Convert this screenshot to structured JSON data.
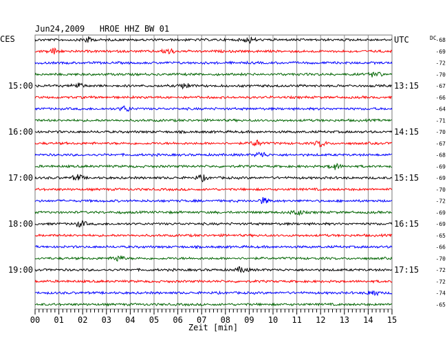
{
  "chart_data": {
    "type": "helicorder",
    "title": "Jun24,2009   HROE HHZ BW 01",
    "left_timezone": "CES",
    "right_timezone": "UTC",
    "dc_label": "DC",
    "xlabel": "Zeit [min]",
    "x_ticks": [
      "00",
      "01",
      "02",
      "03",
      "04",
      "05",
      "06",
      "07",
      "08",
      "09",
      "10",
      "11",
      "12",
      "13",
      "14",
      "15"
    ],
    "xlim": [
      0,
      15
    ],
    "grid": true,
    "left_hour_labels": [
      {
        "row": 4,
        "label": "15:00"
      },
      {
        "row": 8,
        "label": "16:00"
      },
      {
        "row": 12,
        "label": "17:00"
      },
      {
        "row": 16,
        "label": "18:00"
      },
      {
        "row": 20,
        "label": "19:00"
      }
    ],
    "right_hour_labels": [
      {
        "row": 0,
        "label": "UTC"
      },
      {
        "row": 4,
        "label": "13:15"
      },
      {
        "row": 8,
        "label": "14:15"
      },
      {
        "row": 12,
        "label": "15:15"
      },
      {
        "row": 16,
        "label": "16:15"
      },
      {
        "row": 20,
        "label": "17:15"
      }
    ],
    "trace_colors": [
      "#000000",
      "#ff0000",
      "#0000ff",
      "#006400"
    ],
    "traces": [
      {
        "dc": "-68",
        "color": "#000000",
        "events": [
          2.2,
          9.0
        ]
      },
      {
        "dc": "-69",
        "color": "#ff0000",
        "events": [
          0.8,
          5.6
        ]
      },
      {
        "dc": "-72",
        "color": "#0000ff",
        "events": []
      },
      {
        "dc": "-70",
        "color": "#006400",
        "events": [
          14.3
        ]
      },
      {
        "dc": "-67",
        "color": "#000000",
        "events": [
          1.8,
          6.3
        ]
      },
      {
        "dc": "-66",
        "color": "#ff0000",
        "events": []
      },
      {
        "dc": "-64",
        "color": "#0000ff",
        "events": [
          3.8
        ]
      },
      {
        "dc": "-71",
        "color": "#006400",
        "events": []
      },
      {
        "dc": "-70",
        "color": "#000000",
        "events": []
      },
      {
        "dc": "-67",
        "color": "#ff0000",
        "events": [
          9.3,
          12.0
        ]
      },
      {
        "dc": "-68",
        "color": "#0000ff",
        "events": [
          9.5
        ]
      },
      {
        "dc": "-69",
        "color": "#006400",
        "events": [
          12.6
        ]
      },
      {
        "dc": "-69",
        "color": "#000000",
        "events": [
          1.8,
          7.0
        ]
      },
      {
        "dc": "-70",
        "color": "#ff0000",
        "events": []
      },
      {
        "dc": "-72",
        "color": "#0000ff",
        "events": [
          9.6
        ]
      },
      {
        "dc": "-69",
        "color": "#006400",
        "events": [
          11.0
        ]
      },
      {
        "dc": "-69",
        "color": "#000000",
        "events": [
          1.9
        ]
      },
      {
        "dc": "-65",
        "color": "#ff0000",
        "events": []
      },
      {
        "dc": "-66",
        "color": "#0000ff",
        "events": []
      },
      {
        "dc": "-70",
        "color": "#006400",
        "events": [
          3.5
        ]
      },
      {
        "dc": "-72",
        "color": "#000000",
        "events": [
          8.7
        ]
      },
      {
        "dc": "-72",
        "color": "#ff0000",
        "events": []
      },
      {
        "dc": "-74",
        "color": "#0000ff",
        "events": [
          14.2
        ]
      },
      {
        "dc": "-65",
        "color": "#006400",
        "events": []
      }
    ]
  }
}
